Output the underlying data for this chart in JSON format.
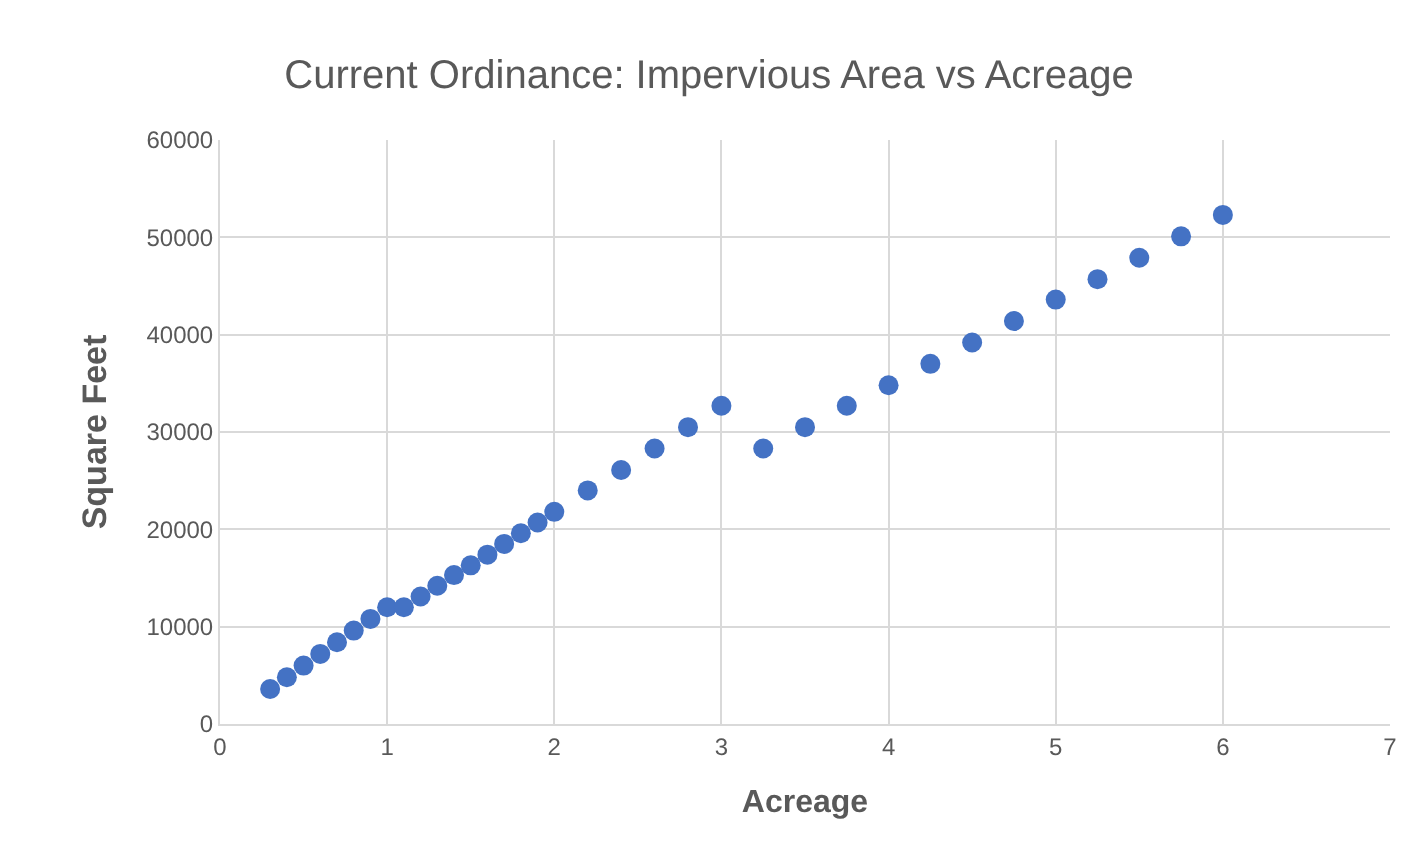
{
  "chart_data": {
    "type": "scatter",
    "title": "Current Ordinance: Impervious Area vs Acreage",
    "xlabel": "Acreage",
    "ylabel": "Square Feet",
    "x": [
      0.3,
      0.4,
      0.5,
      0.6,
      0.7,
      0.8,
      0.9,
      1.0,
      1.1,
      1.2,
      1.3,
      1.4,
      1.5,
      1.6,
      1.7,
      1.8,
      1.9,
      2.0,
      2.2,
      2.4,
      2.6,
      2.8,
      3.0,
      3.25,
      3.5,
      3.75,
      4.0,
      4.25,
      4.5,
      4.75,
      5.0,
      5.25,
      5.5,
      5.75,
      6.0
    ],
    "series": [
      {
        "color": "#4472c4",
        "values": [
          3600,
          4800,
          6000,
          7200,
          8400,
          9600,
          10800,
          12000,
          12000,
          13100,
          14200,
          15300,
          16300,
          17400,
          18500,
          19600,
          20700,
          21800,
          24000,
          26100,
          28300,
          30500,
          32700,
          28300,
          30500,
          32700,
          34800,
          37000,
          39200,
          41400,
          43600,
          45700,
          47900,
          50100,
          52300
        ]
      }
    ],
    "xlim": [
      0,
      7
    ],
    "xticks": [
      0,
      1,
      2,
      3,
      4,
      5,
      6,
      7
    ],
    "ylim": [
      0,
      60000
    ],
    "yticks": [
      0,
      10000,
      20000,
      30000,
      40000,
      50000,
      60000
    ],
    "grid": true,
    "marker": "circle",
    "legend": false
  }
}
